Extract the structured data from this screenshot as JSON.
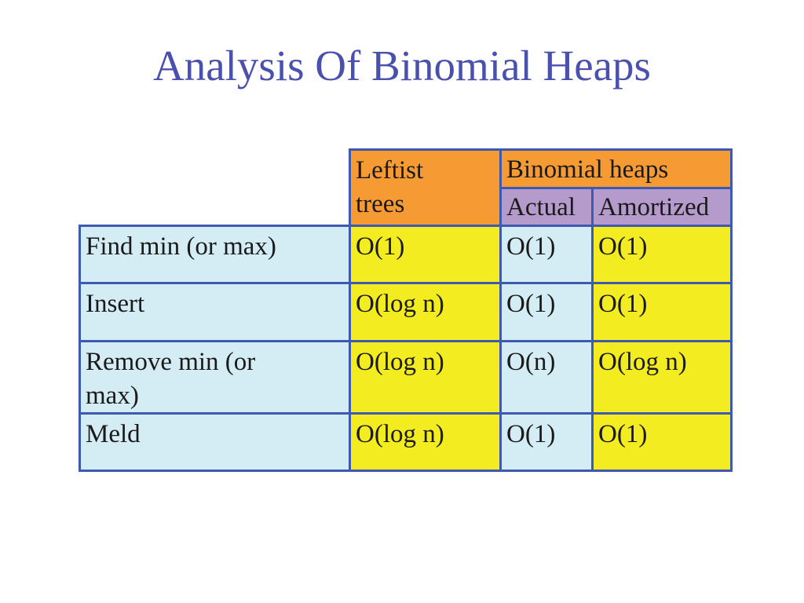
{
  "slide": {
    "title": "Analysis Of Binomial Heaps"
  },
  "table": {
    "headers": {
      "leftist": "Leftist trees",
      "binomial": "Binomial heaps",
      "actual": "Actual",
      "amortized": "Amortized"
    },
    "rows": [
      {
        "op": "Find min (or max)",
        "leftist": "O(1)",
        "actual": "O(1)",
        "amortized": "O(1)"
      },
      {
        "op": "Insert",
        "leftist": "O(log n)",
        "actual": "O(1)",
        "amortized": "O(1)"
      },
      {
        "op": "Remove min (or max)",
        "leftist": "O(log n)",
        "actual": "O(n)",
        "amortized": "O(log n)"
      },
      {
        "op": "Meld",
        "leftist": "O(log n)",
        "actual": "O(1)",
        "amortized": "O(1)"
      }
    ]
  },
  "colors": {
    "title": "#4a50ad",
    "border": "#3e5ab0",
    "header_orange": "#f69a34",
    "header_purple": "#b59acc",
    "cell_blue": "#d4ecf4",
    "cell_yellow": "#f2ec20"
  }
}
